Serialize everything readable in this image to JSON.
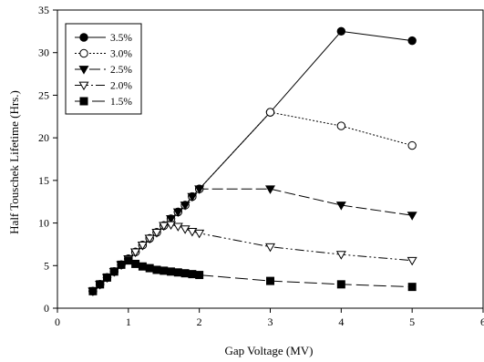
{
  "chart_data": {
    "type": "line",
    "title": "",
    "xlabel": "Gap Voltage (MV)",
    "ylabel": "Half Touschek Lifetime (Hrs.)",
    "xlim": [
      0,
      6
    ],
    "ylim": [
      0,
      35
    ],
    "xticks": [
      0,
      1,
      2,
      3,
      4,
      5,
      6
    ],
    "yticks": [
      0,
      5,
      10,
      15,
      20,
      25,
      30,
      35
    ],
    "grid": false,
    "legend_position": "top-left",
    "series": [
      {
        "name": "3.5%",
        "marker": "filled-circle",
        "dash": "",
        "points": [
          [
            0.5,
            2.0
          ],
          [
            0.6,
            2.8
          ],
          [
            0.7,
            3.6
          ],
          [
            0.8,
            4.3
          ],
          [
            0.9,
            5.1
          ],
          [
            1.0,
            5.8
          ],
          [
            1.1,
            6.6
          ],
          [
            1.2,
            7.4
          ],
          [
            1.3,
            8.2
          ],
          [
            1.4,
            8.9
          ],
          [
            1.5,
            9.7
          ],
          [
            1.6,
            10.5
          ],
          [
            1.7,
            11.3
          ],
          [
            1.8,
            12.1
          ],
          [
            1.9,
            13.1
          ],
          [
            2.0,
            14.0
          ],
          [
            3.0,
            23.0
          ],
          [
            4.0,
            32.5
          ],
          [
            5.0,
            31.4
          ]
        ]
      },
      {
        "name": "3.0%",
        "marker": "open-circle",
        "dash": "2,2",
        "points": [
          [
            0.5,
            2.0
          ],
          [
            0.6,
            2.8
          ],
          [
            0.7,
            3.6
          ],
          [
            0.8,
            4.3
          ],
          [
            0.9,
            5.1
          ],
          [
            1.0,
            5.8
          ],
          [
            1.1,
            6.6
          ],
          [
            1.2,
            7.4
          ],
          [
            1.3,
            8.2
          ],
          [
            1.4,
            8.9
          ],
          [
            1.5,
            9.7
          ],
          [
            1.6,
            10.5
          ],
          [
            1.7,
            11.3
          ],
          [
            1.8,
            12.1
          ],
          [
            1.9,
            13.1
          ],
          [
            2.0,
            14.0
          ],
          [
            3.0,
            23.0
          ],
          [
            4.0,
            21.4
          ],
          [
            5.0,
            19.1
          ]
        ]
      },
      {
        "name": "2.5%",
        "marker": "filled-triangle-down",
        "dash": "12,4",
        "points": [
          [
            0.5,
            2.0
          ],
          [
            0.6,
            2.8
          ],
          [
            0.7,
            3.6
          ],
          [
            0.8,
            4.3
          ],
          [
            0.9,
            5.1
          ],
          [
            1.0,
            5.8
          ],
          [
            1.1,
            6.6
          ],
          [
            1.2,
            7.4
          ],
          [
            1.3,
            8.2
          ],
          [
            1.4,
            8.9
          ],
          [
            1.5,
            9.7
          ],
          [
            1.6,
            10.5
          ],
          [
            1.7,
            11.3
          ],
          [
            1.8,
            12.1
          ],
          [
            1.9,
            13.1
          ],
          [
            2.0,
            14.0
          ],
          [
            3.0,
            14.0
          ],
          [
            4.0,
            12.1
          ],
          [
            5.0,
            10.9
          ]
        ]
      },
      {
        "name": "2.0%",
        "marker": "open-triangle-down",
        "dash": "10,3,2,3,2,3",
        "points": [
          [
            0.5,
            2.0
          ],
          [
            0.6,
            2.8
          ],
          [
            0.7,
            3.6
          ],
          [
            0.8,
            4.3
          ],
          [
            0.9,
            5.1
          ],
          [
            1.0,
            5.8
          ],
          [
            1.1,
            6.6
          ],
          [
            1.2,
            7.4
          ],
          [
            1.3,
            8.2
          ],
          [
            1.4,
            8.9
          ],
          [
            1.5,
            9.7
          ],
          [
            1.6,
            9.8
          ],
          [
            1.7,
            9.6
          ],
          [
            1.8,
            9.3
          ],
          [
            1.9,
            9.0
          ],
          [
            2.0,
            8.8
          ],
          [
            3.0,
            7.2
          ],
          [
            4.0,
            6.3
          ],
          [
            5.0,
            5.6
          ]
        ]
      },
      {
        "name": "1.5%",
        "marker": "filled-square",
        "dash": "14,5",
        "points": [
          [
            0.5,
            2.0
          ],
          [
            0.6,
            2.8
          ],
          [
            0.7,
            3.6
          ],
          [
            0.8,
            4.3
          ],
          [
            0.9,
            5.1
          ],
          [
            1.0,
            5.6
          ],
          [
            1.1,
            5.2
          ],
          [
            1.2,
            4.9
          ],
          [
            1.3,
            4.7
          ],
          [
            1.4,
            4.5
          ],
          [
            1.5,
            4.4
          ],
          [
            1.6,
            4.3
          ],
          [
            1.7,
            4.2
          ],
          [
            1.8,
            4.1
          ],
          [
            1.9,
            4.0
          ],
          [
            2.0,
            3.9
          ],
          [
            3.0,
            3.2
          ],
          [
            4.0,
            2.8
          ],
          [
            5.0,
            2.5
          ]
        ]
      }
    ]
  }
}
